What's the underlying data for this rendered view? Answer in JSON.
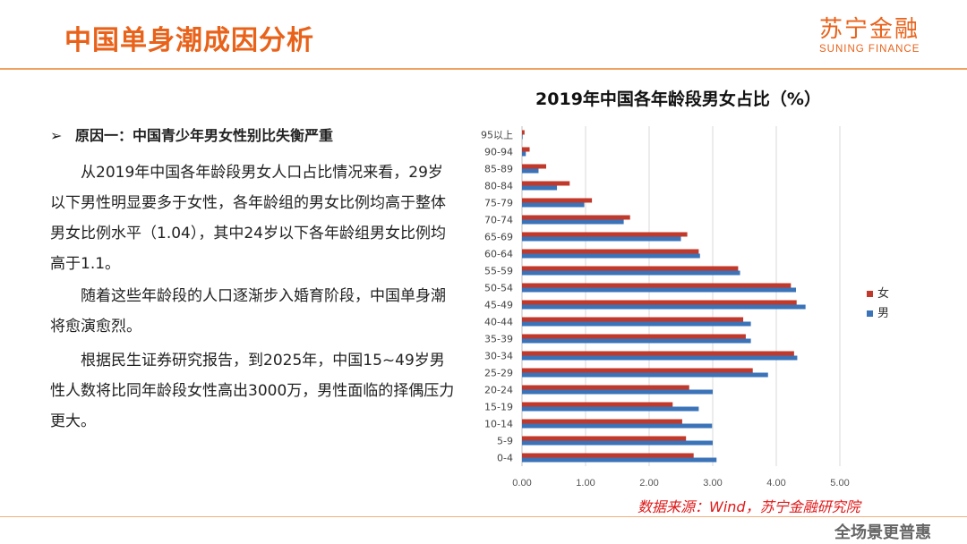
{
  "slide": {
    "title": "中国单身潮成因分析",
    "logo_cn": "苏宁金融",
    "logo_en": "SUNING FINANCE",
    "bullet_marker": "➢",
    "bullet": "原因一：中国青少年男女性别比失衡严重",
    "paragraphs": [
      "从2019年中国各年龄段男女人口占比情况来看，29岁以下男性明显要多于女性，各年龄组的男女比例均高于整体男女比例水平（1.04），其中24岁以下各年龄组男女比例均高于1.1。",
      "随着这些年龄段的人口逐渐步入婚育阶段，中国单身潮将愈演愈烈。",
      "根据民生证券研究报告，到2025年，中国15~49岁男性人数将比同年龄段女性高出3000万，男性面临的择偶压力更大。"
    ],
    "source": "数据来源：Wind，苏宁金融研究院",
    "watermark": "全场景更普惠"
  },
  "colors": {
    "accent": "#e8621a",
    "female": "#c0392b",
    "male": "#3a73b8",
    "source": "#e01818"
  },
  "chart_data": {
    "type": "bar",
    "orientation": "horizontal",
    "title": "2019年中国各年龄段男女占比（%）",
    "categories": [
      "0-4",
      "5-9",
      "10-14",
      "15-19",
      "20-24",
      "25-29",
      "30-34",
      "35-39",
      "40-44",
      "45-49",
      "50-54",
      "55-59",
      "60-64",
      "65-69",
      "70-74",
      "75-79",
      "80-84",
      "85-89",
      "90-94",
      "95以上"
    ],
    "series": [
      {
        "name": "女",
        "values": [
          2.7,
          2.58,
          2.52,
          2.37,
          2.63,
          3.63,
          4.28,
          3.52,
          3.48,
          4.32,
          4.23,
          3.4,
          2.78,
          2.6,
          1.7,
          1.1,
          0.75,
          0.38,
          0.12,
          0.04
        ]
      },
      {
        "name": "男",
        "values": [
          3.06,
          3.0,
          2.99,
          2.78,
          3.0,
          3.87,
          4.33,
          3.6,
          3.6,
          4.46,
          4.31,
          3.43,
          2.8,
          2.5,
          1.6,
          0.98,
          0.55,
          0.26,
          0.06,
          0.01
        ]
      }
    ],
    "xlim": [
      0,
      5
    ],
    "xticks": [
      "0.00",
      "1.00",
      "2.00",
      "3.00",
      "4.00",
      "5.00"
    ],
    "legend": "right"
  }
}
